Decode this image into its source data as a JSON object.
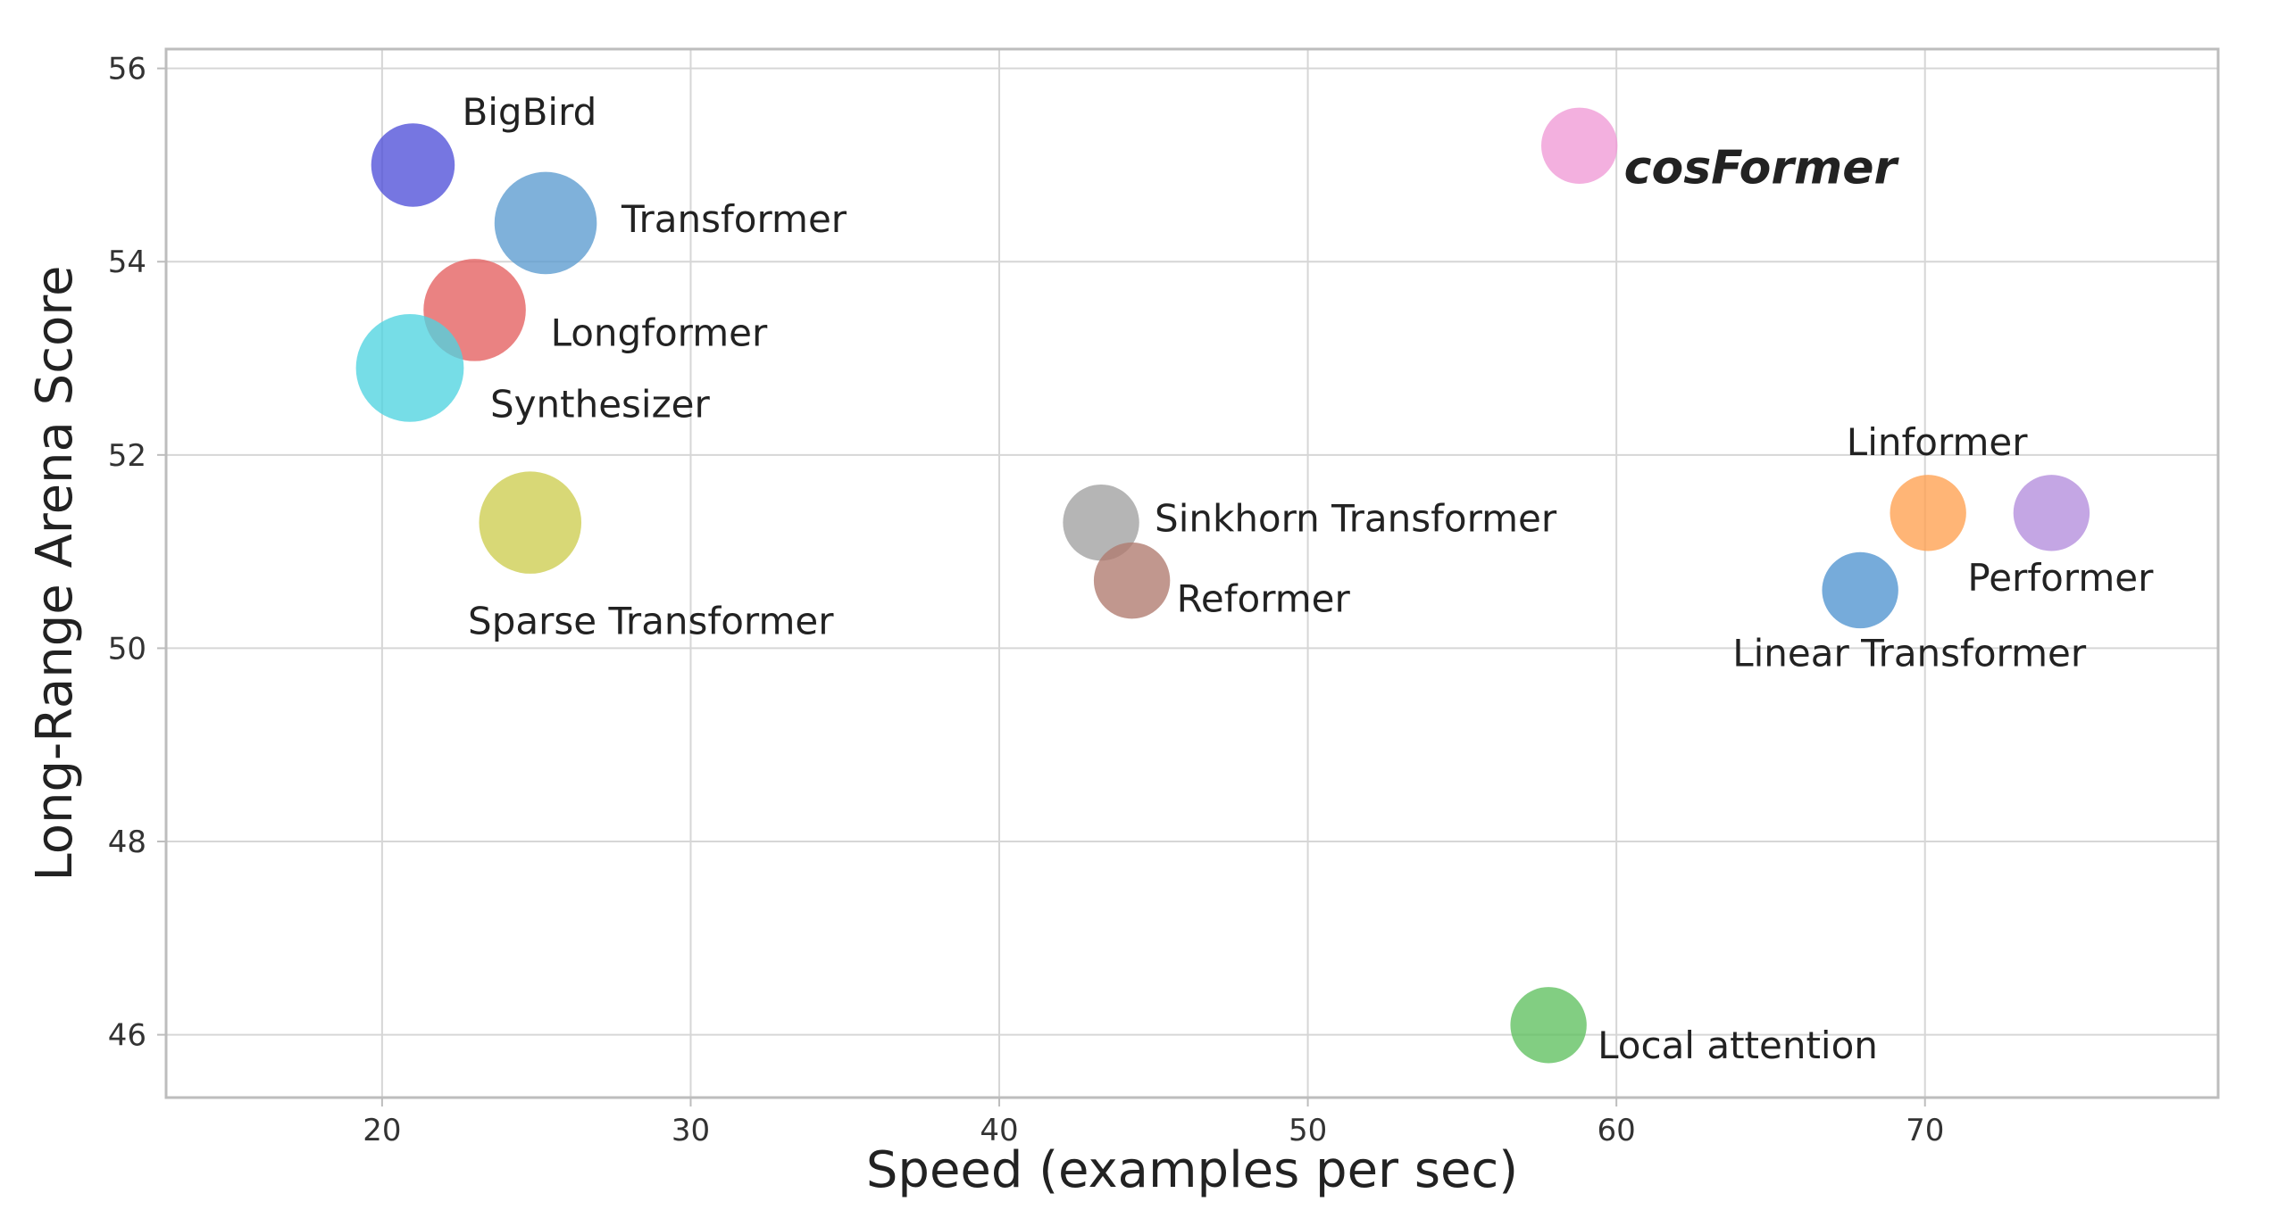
{
  "chart_data": {
    "type": "scatter",
    "title": "",
    "xlabel": "Speed (examples per sec)",
    "ylabel": "Long-Range Arena Score",
    "xlim": [
      13,
      79.5
    ],
    "ylim": [
      45.35,
      56.2
    ],
    "xticks": [
      20,
      30,
      40,
      50,
      60,
      70
    ],
    "yticks": [
      46,
      48,
      50,
      52,
      54,
      56
    ],
    "grid": true,
    "points": [
      {
        "name": "BigBird",
        "x": 21.0,
        "y": 55.0,
        "size": 3.0,
        "color": "#4f4fd9",
        "highlight": false
      },
      {
        "name": "Transformer",
        "x": 25.3,
        "y": 54.4,
        "size": 4.5,
        "color": "#5b9bd0",
        "highlight": false
      },
      {
        "name": "Longformer",
        "x": 23.0,
        "y": 53.5,
        "size": 4.5,
        "color": "#e45f5f",
        "highlight": false
      },
      {
        "name": "Synthesizer",
        "x": 20.9,
        "y": 52.9,
        "size": 5.0,
        "color": "#4fd3e0",
        "highlight": false
      },
      {
        "name": "Sparse Transformer",
        "x": 24.8,
        "y": 51.3,
        "size": 4.5,
        "color": "#cdcd4f",
        "highlight": false
      },
      {
        "name": "Sinkhorn Transformer",
        "x": 43.3,
        "y": 51.3,
        "size": 2.5,
        "color": "#a0a0a0",
        "highlight": false
      },
      {
        "name": "Reformer",
        "x": 44.3,
        "y": 50.7,
        "size": 2.5,
        "color": "#b07a6e",
        "highlight": false
      },
      {
        "name": "cosFormer",
        "x": 58.8,
        "y": 55.2,
        "size": 2.5,
        "color": "#f09ad6",
        "highlight": true
      },
      {
        "name": "Linformer",
        "x": 70.1,
        "y": 51.4,
        "size": 2.5,
        "color": "#ffa04f",
        "highlight": false
      },
      {
        "name": "Performer",
        "x": 74.1,
        "y": 51.4,
        "size": 2.5,
        "color": "#b48ddc",
        "highlight": false
      },
      {
        "name": "Linear Transformer",
        "x": 67.9,
        "y": 50.6,
        "size": 2.5,
        "color": "#4f93d0",
        "highlight": false
      },
      {
        "name": "Local attention",
        "x": 57.8,
        "y": 46.1,
        "size": 2.5,
        "color": "#5fc05f",
        "highlight": false
      }
    ]
  }
}
